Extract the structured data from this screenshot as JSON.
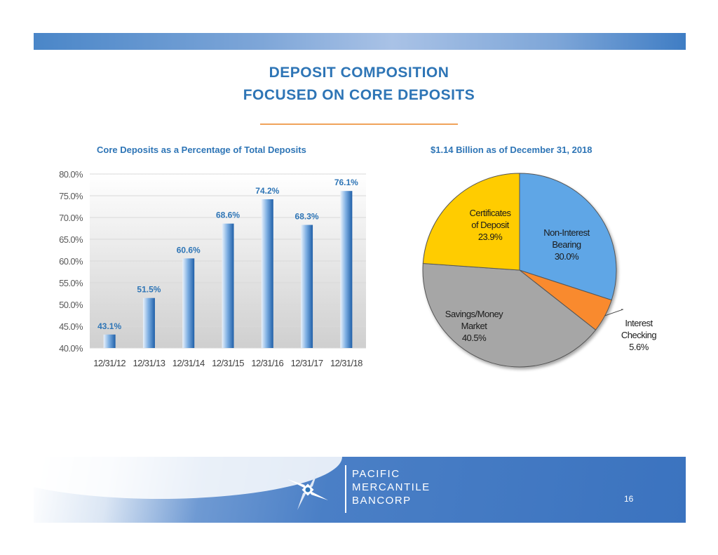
{
  "slide": {
    "title_line1": "DEPOSIT  COMPOSITION",
    "title_line2": "FOCUSED  ON  CORE  DEPOSITS",
    "page_number": "16"
  },
  "logo": {
    "line1": "PACIFIC",
    "line2": "MERCANTILE",
    "line3": "BANCORP"
  },
  "colors": {
    "title": "#2e75b6",
    "accent_rule": "#f0a35a",
    "bar_light": "#dce9f7",
    "bar_dark": "#2e6fb8",
    "pie_certificates": "#ffcc00",
    "pie_non_interest": "#5ea6e6",
    "pie_interest_checking": "#f98a2e",
    "pie_savings": "#a6a6a6"
  },
  "chart_data": [
    {
      "type": "bar",
      "title": "Core Deposits as a Percentage of Total Deposits",
      "categories": [
        "12/31/12",
        "12/31/13",
        "12/31/14",
        "12/31/15",
        "12/31/16",
        "12/31/17",
        "12/31/18"
      ],
      "values": [
        43.1,
        51.5,
        60.6,
        68.6,
        74.2,
        68.3,
        76.1
      ],
      "data_labels": [
        "43.1%",
        "51.5%",
        "60.6%",
        "68.6%",
        "74.2%",
        "68.3%",
        "76.1%"
      ],
      "ylim": [
        40,
        80
      ],
      "yticks": [
        40,
        45,
        50,
        55,
        60,
        65,
        70,
        75,
        80
      ],
      "ytick_labels": [
        "40.0%",
        "45.0%",
        "50.0%",
        "55.0%",
        "60.0%",
        "65.0%",
        "70.0%",
        "75.0%",
        "80.0%"
      ],
      "grid": true,
      "xlabel": "",
      "ylabel": ""
    },
    {
      "type": "pie",
      "title": "$1.14 Billion as of December 31,  2018",
      "slices": [
        {
          "label_lines": [
            "Non-Interest",
            "Bearing"
          ],
          "value_label": "30.0%",
          "value": 30.0
        },
        {
          "label_lines": [
            "Interest",
            "Checking"
          ],
          "value_label": "5.6%",
          "value": 5.6
        },
        {
          "label_lines": [
            "Savings/Money",
            "Market"
          ],
          "value_label": "40.5%",
          "value": 40.5
        },
        {
          "label_lines": [
            "Certificates",
            "of Deposit"
          ],
          "value_label": "23.9%",
          "value": 23.9
        }
      ]
    }
  ]
}
